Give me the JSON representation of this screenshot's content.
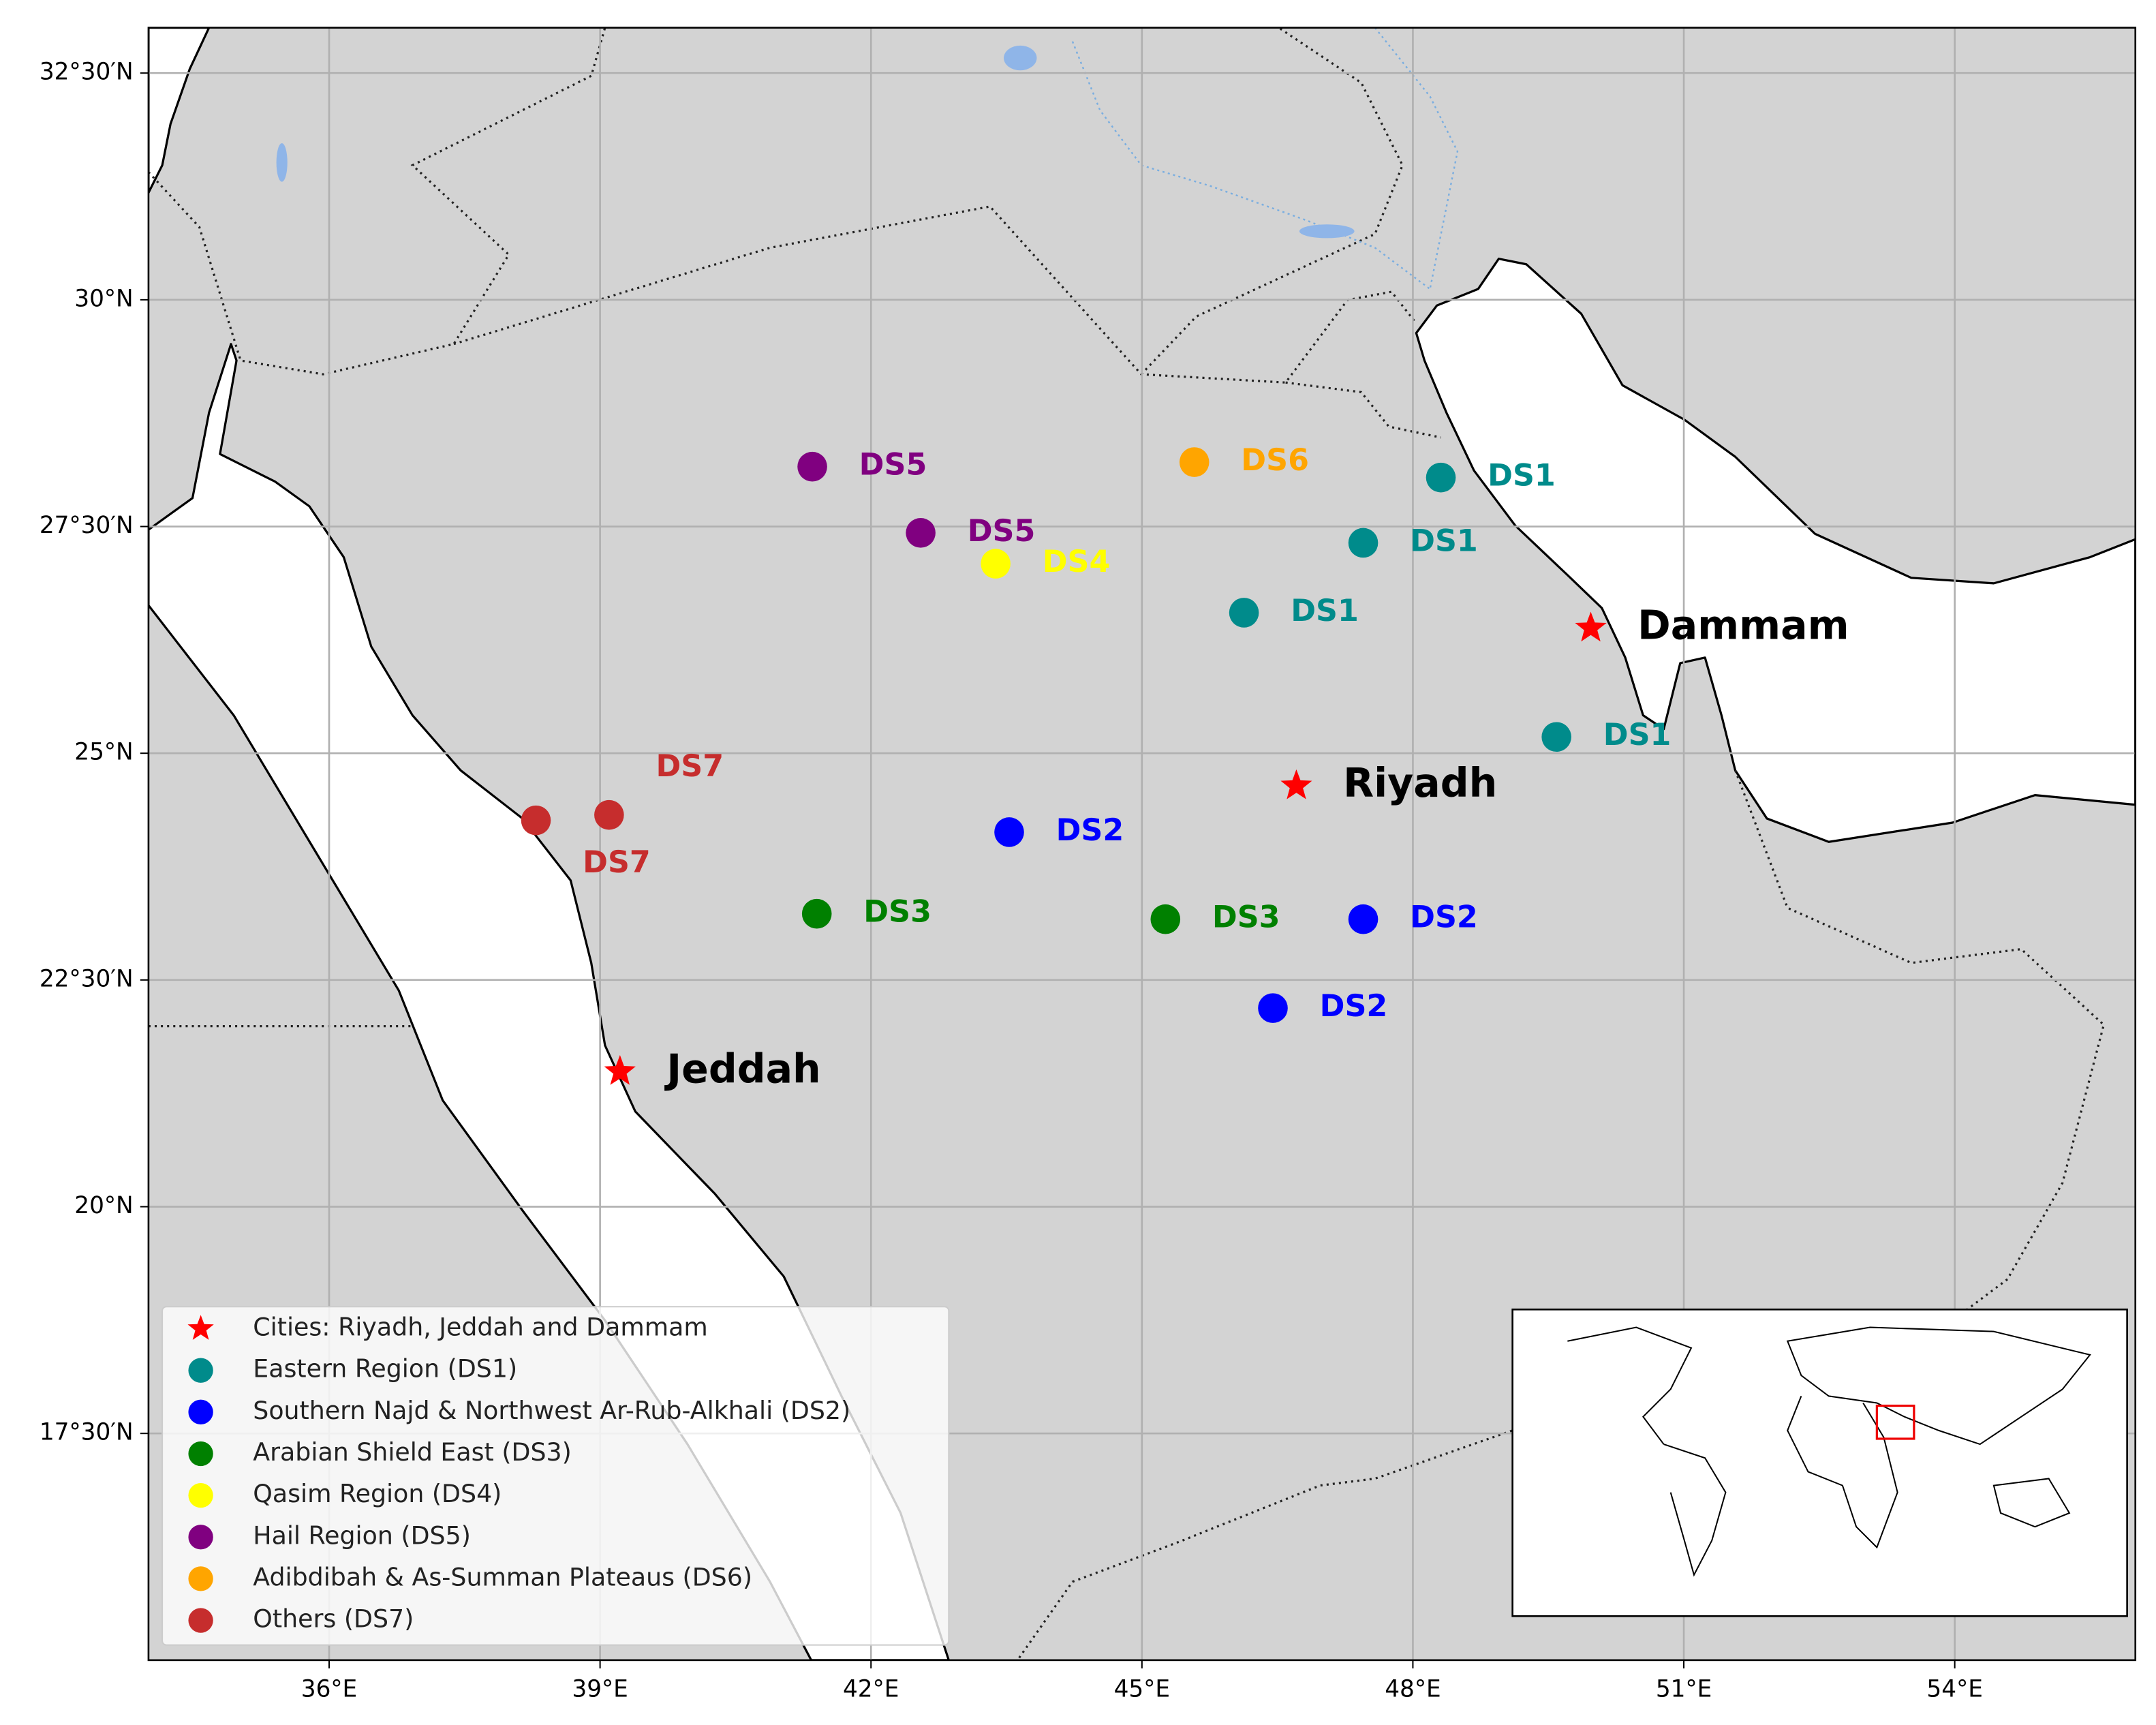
{
  "chart_data": {
    "type": "map",
    "xlim": [
      34,
      56
    ],
    "ylim": [
      15,
      33
    ],
    "xticks": [
      {
        "value": 36,
        "label": "36°E"
      },
      {
        "value": 39,
        "label": "39°E"
      },
      {
        "value": 42,
        "label": "42°E"
      },
      {
        "value": 45,
        "label": "45°E"
      },
      {
        "value": 48,
        "label": "48°E"
      },
      {
        "value": 51,
        "label": "51°E"
      },
      {
        "value": 54,
        "label": "54°E"
      }
    ],
    "yticks": [
      {
        "value": 17.5,
        "label": "17°30′N"
      },
      {
        "value": 20,
        "label": "20°N"
      },
      {
        "value": 22.5,
        "label": "22°30′N"
      },
      {
        "value": 25,
        "label": "25°N"
      },
      {
        "value": 27.5,
        "label": "27°30′N"
      },
      {
        "value": 30,
        "label": "30°N"
      },
      {
        "value": 32.5,
        "label": "32°30′N"
      }
    ],
    "grid": true,
    "legend": "lower left",
    "series": [
      {
        "name": "Cities: Riyadh, Jeddah and Dammam",
        "color": "#ff0000",
        "marker": "star",
        "x": [
          46.71,
          39.22,
          49.97
        ],
        "y": [
          24.64,
          21.49,
          26.38
        ],
        "labels": [
          "Riyadh",
          "Jeddah",
          "Dammam"
        ]
      },
      {
        "name": "Eastern Region (DS1)",
        "color": "#008b8b",
        "marker": "circle",
        "x": [
          48.31,
          47.45,
          46.13,
          49.59
        ],
        "y": [
          28.04,
          27.32,
          26.55,
          25.18
        ],
        "labels": [
          "DS1",
          "DS1",
          "DS1",
          "DS1"
        ]
      },
      {
        "name": "Southern Najd & Northwest Ar-Rub-Alkhali (DS2)",
        "color": "#0000ff",
        "marker": "circle",
        "x": [
          43.53,
          47.45,
          46.45
        ],
        "y": [
          24.13,
          23.17,
          22.19
        ],
        "labels": [
          "DS2",
          "DS2",
          "DS2"
        ]
      },
      {
        "name": "Arabian Shield East (DS3)",
        "color": "#008000",
        "marker": "circle",
        "x": [
          41.4,
          45.26
        ],
        "y": [
          23.23,
          23.17
        ],
        "labels": [
          "DS3",
          "DS3"
        ]
      },
      {
        "name": "Qasim Region (DS4)",
        "color": "#ffff00",
        "marker": "circle",
        "x": [
          43.38
        ],
        "y": [
          27.09
        ],
        "labels": [
          "DS4"
        ]
      },
      {
        "name": "Hail Region (DS5)",
        "color": "#800080",
        "marker": "circle",
        "x": [
          41.35,
          42.55
        ],
        "y": [
          28.16,
          27.43
        ],
        "labels": [
          "DS5",
          "DS5"
        ]
      },
      {
        "name": "Adibdibah & As-Summan Plateaus (DS6)",
        "color": "#ffa500",
        "marker": "circle",
        "x": [
          45.58
        ],
        "y": [
          28.21
        ],
        "labels": [
          "DS6"
        ]
      },
      {
        "name": "Others (DS7)",
        "color": "#c62d2d",
        "marker": "circle",
        "x": [
          38.29,
          39.1
        ],
        "y": [
          24.26,
          24.32
        ],
        "labels": [
          "DS7",
          "DS7"
        ]
      }
    ]
  }
}
